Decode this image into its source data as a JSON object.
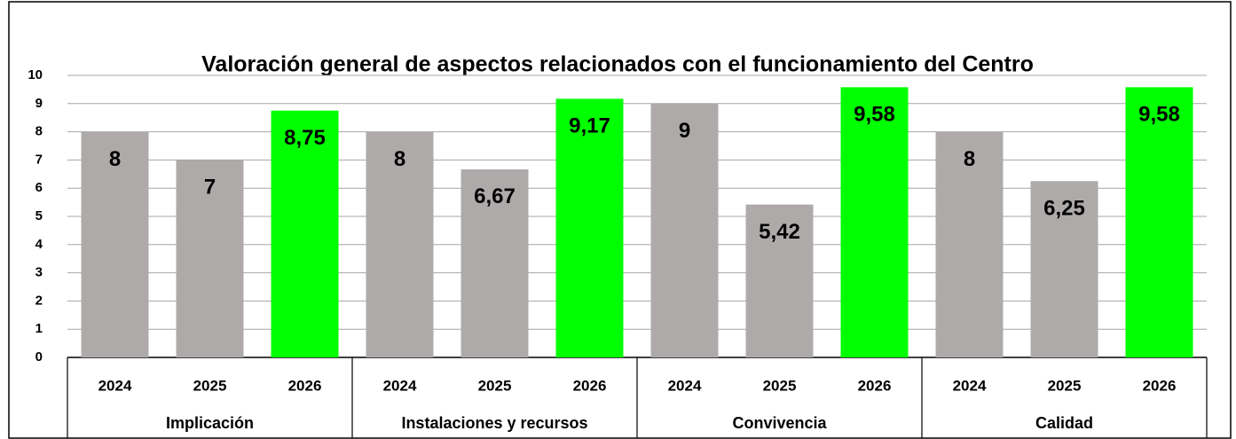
{
  "chart_data": {
    "type": "grouped_bar",
    "title": "Valoración general de aspectos relacionados con el funcionamiento del Centro",
    "colors": [
      "#aeaaaa",
      "#aeaaaa",
      "#00ff00"
    ],
    "groups": [
      {
        "name": "Implicación",
        "categories": [
          "2024",
          "2025",
          "2026"
        ],
        "values": [
          8,
          7,
          8.75
        ],
        "value_labels": [
          "8",
          "7",
          "8,75"
        ]
      },
      {
        "name": "Instalaciones y recursos",
        "categories": [
          "2024",
          "2025",
          "2026"
        ],
        "values": [
          8,
          6.67,
          9.17
        ],
        "value_labels": [
          "8",
          "6,67",
          "9,17"
        ]
      },
      {
        "name": "Convivencia",
        "categories": [
          "2024",
          "2025",
          "2026"
        ],
        "values": [
          9,
          5.42,
          9.58
        ],
        "value_labels": [
          "9",
          "5,42",
          "9,58"
        ]
      },
      {
        "name": "Calidad",
        "categories": [
          "2024",
          "2025",
          "2026"
        ],
        "values": [
          8,
          6.25,
          9.58
        ],
        "value_labels": [
          "8",
          "6,25",
          "9,58"
        ]
      }
    ],
    "ylim": [
      0,
      10
    ],
    "yticks": [
      0,
      1,
      2,
      3,
      4,
      5,
      6,
      7,
      8,
      9,
      10
    ],
    "grid": true
  }
}
